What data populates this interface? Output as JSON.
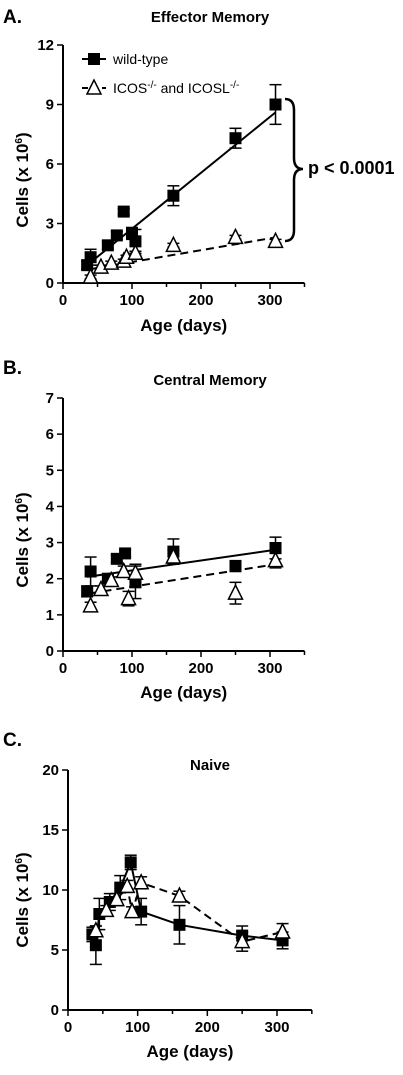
{
  "legend": {
    "wild_type": "wild-type",
    "ko": "ICOS⁻/⁻ and ICOSL⁻/⁻"
  },
  "annotation": {
    "p_value": "p < 0.0001"
  },
  "colors": {
    "ink": "#000000",
    "open_fill": "#ffffff"
  },
  "chart_data": [
    {
      "type": "scatter",
      "panel": "A.",
      "title": "Effector Memory",
      "xlabel": "Age (days)",
      "ylabel": "Cells (x 10⁶)",
      "xlim": [
        0,
        350
      ],
      "ylim": [
        0,
        12
      ],
      "xticks": [
        0,
        100,
        200,
        300
      ],
      "yticks": [
        0,
        3,
        6,
        9,
        12
      ],
      "series": [
        {
          "name": "wild-type",
          "marker": "filled-square",
          "fit": "solid",
          "x": [
            35,
            40,
            65,
            78,
            88,
            100,
            105,
            160,
            250,
            308
          ],
          "y": [
            0.9,
            1.3,
            1.9,
            2.4,
            3.6,
            2.5,
            2.1,
            4.4,
            7.3,
            9.0
          ],
          "err": [
            0.2,
            0.4,
            0.2,
            0.2,
            0.15,
            0.3,
            0.6,
            0.5,
            0.5,
            1.0
          ],
          "fit_line": [
            [
              35,
              0.9
            ],
            [
              308,
              8.6
            ]
          ]
        },
        {
          "name": "ICOS⁻/⁻ and ICOSL⁻/⁻",
          "marker": "open-triangle",
          "fit": "dashed",
          "x": [
            40,
            55,
            70,
            88,
            92,
            105,
            160,
            250,
            308
          ],
          "y": [
            0.3,
            0.8,
            1.0,
            1.1,
            1.3,
            1.5,
            1.9,
            2.3,
            2.1
          ],
          "err": [
            0.1,
            0.1,
            0.1,
            0.1,
            0.1,
            0.1,
            0.1,
            0.1,
            0.1
          ],
          "fit_line": [
            [
              40,
              0.7
            ],
            [
              308,
              2.3
            ]
          ]
        }
      ]
    },
    {
      "type": "scatter",
      "panel": "B.",
      "title": "Central Memory",
      "xlabel": "Age (days)",
      "ylabel": "Cells (x 10⁶)",
      "xlim": [
        0,
        350
      ],
      "ylim": [
        0,
        7
      ],
      "xticks": [
        0,
        100,
        200,
        300
      ],
      "yticks": [
        0,
        1,
        2,
        3,
        4,
        5,
        6,
        7
      ],
      "series": [
        {
          "name": "wild-type",
          "marker": "filled-square",
          "fit": "solid",
          "x": [
            35,
            40,
            65,
            78,
            90,
            105,
            160,
            250,
            308
          ],
          "y": [
            1.65,
            2.2,
            2.0,
            2.55,
            2.7,
            1.9,
            2.75,
            2.35,
            2.85
          ],
          "err": [
            0.15,
            0.4,
            0.1,
            0.1,
            0.1,
            0.45,
            0.35,
            0.15,
            0.3
          ],
          "fit_line": [
            [
              35,
              2.05
            ],
            [
              308,
              2.8
            ]
          ]
        },
        {
          "name": "ICOS⁻/⁻ and ICOSL⁻/⁻",
          "marker": "open-triangle",
          "fit": "dashed",
          "x": [
            40,
            55,
            70,
            88,
            95,
            105,
            160,
            250,
            308
          ],
          "y": [
            1.25,
            1.7,
            1.95,
            2.2,
            1.45,
            2.15,
            2.6,
            1.6,
            2.5
          ],
          "err": [
            0.1,
            0.1,
            0.1,
            0.15,
            0.2,
            0.25,
            0.2,
            0.3,
            0.2
          ],
          "fit_line": [
            [
              40,
              1.6
            ],
            [
              308,
              2.4
            ]
          ]
        }
      ]
    },
    {
      "type": "line",
      "panel": "C.",
      "title": "Naive",
      "xlabel": "Age (days)",
      "ylabel": "Cells (x 10⁶)",
      "xlim": [
        0,
        350
      ],
      "ylim": [
        0,
        20
      ],
      "xticks": [
        0,
        100,
        200,
        300
      ],
      "yticks": [
        0,
        5,
        10,
        15,
        20
      ],
      "series": [
        {
          "name": "wild-type",
          "marker": "filled-square",
          "fit": "solid",
          "x": [
            35,
            40,
            45,
            60,
            75,
            90,
            105,
            160,
            250,
            308
          ],
          "y": [
            6.3,
            5.4,
            8.0,
            9.0,
            10.2,
            12.3,
            8.2,
            7.1,
            6.2,
            5.8
          ],
          "err": [
            0.6,
            1.6,
            1.3,
            0.7,
            1.0,
            0.6,
            1.1,
            1.6,
            0.8,
            0.7
          ],
          "fit_line": [
            [
              35,
              6.3
            ],
            [
              40,
              5.4
            ],
            [
              45,
              8.0
            ],
            [
              60,
              9.0
            ],
            [
              75,
              10.2
            ],
            [
              90,
              12.3
            ],
            [
              105,
              8.2
            ],
            [
              160,
              7.1
            ],
            [
              250,
              6.2
            ],
            [
              308,
              5.8
            ]
          ]
        },
        {
          "name": "ICOS⁻/⁻ and ICOSL⁻/⁻",
          "marker": "open-triangle",
          "fit": "dashed",
          "x": [
            40,
            55,
            70,
            85,
            92,
            105,
            160,
            250,
            308
          ],
          "y": [
            6.6,
            8.3,
            9.2,
            10.3,
            8.2,
            10.6,
            9.5,
            5.7,
            6.5
          ],
          "err": [
            0.4,
            0.4,
            0.5,
            0.5,
            0.4,
            0.5,
            0.4,
            0.8,
            0.7
          ],
          "fit_line": [
            [
              40,
              6.6
            ],
            [
              55,
              8.3
            ],
            [
              70,
              9.2
            ],
            [
              85,
              10.3
            ],
            [
              92,
              8.2
            ],
            [
              105,
              10.6
            ],
            [
              160,
              9.5
            ],
            [
              250,
              5.7
            ],
            [
              308,
              6.5
            ]
          ]
        }
      ]
    }
  ]
}
